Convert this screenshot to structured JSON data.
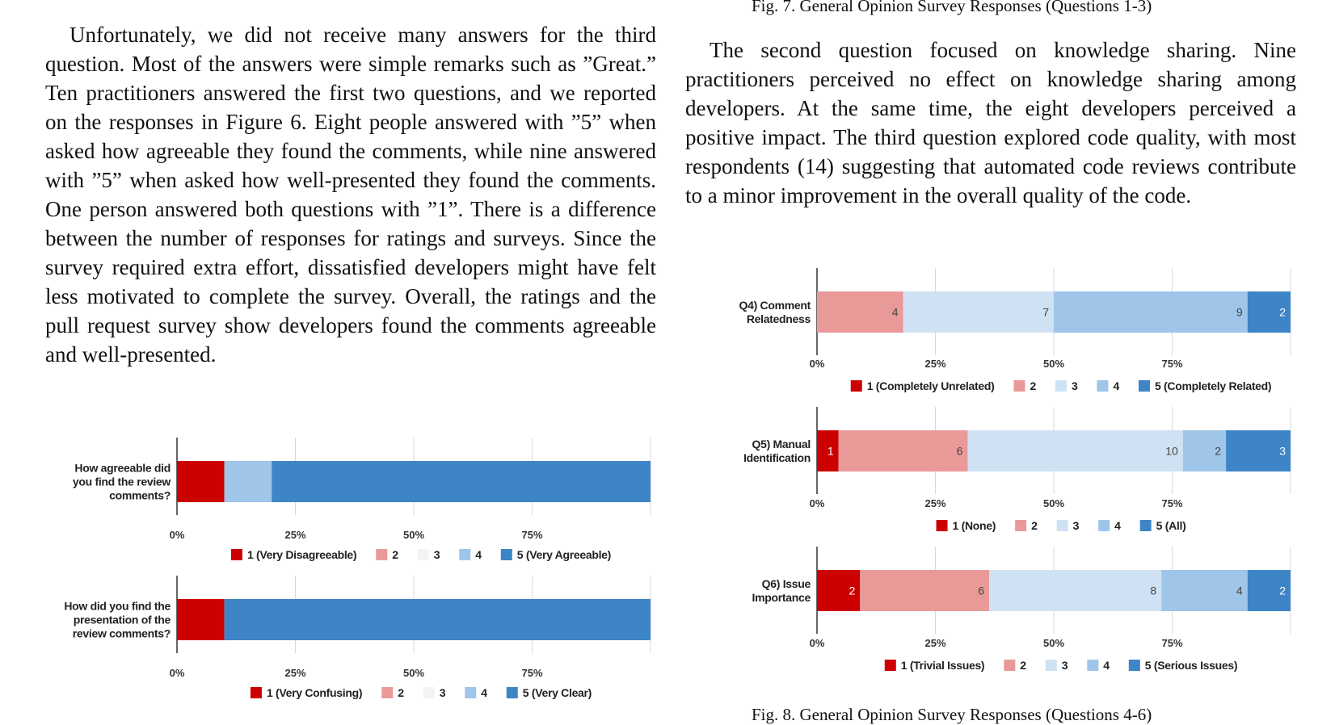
{
  "figure7_caption": "Fig. 7.  General Opinion Survey Responses (Questions 1-3)",
  "left_paragraph": "Unfortunately, we did not receive many answers for the third question. Most of the answers were simple remarks such as ”Great.” Ten practitioners answered the first two questions, and we reported on the responses in Figure 6. Eight people answered with ”5” when asked how agreeable they found the comments, while nine answered with ”5” when asked how well-presented they found the comments. One person answered both questions with ”1”. There is a difference between the number of responses for ratings and surveys. Since the survey required extra effort, dissatisfied developers might have felt less motivated to complete the survey. Overall, the ratings and the pull request survey show developers found the comments agreeable and well-presented.",
  "right_paragraph": "The second question focused on knowledge sharing. Nine practitioners perceived no effect on knowledge sharing among developers. At the same time, the eight developers perceived a positive impact. The third question explored code quality, with most respondents (14) suggesting that automated code reviews contribute to a minor improvement in the overall quality of the code.",
  "figure8_caption": "Fig. 8.  General Opinion Survey Responses (Questions 4-6)",
  "colors": [
    "#cc0000",
    "#ea9999",
    "#cfe2f3",
    "#9fc5e8",
    "#3d85c6"
  ],
  "chart_data": [
    {
      "type": "bar",
      "orientation": "horizontal",
      "stacked": true,
      "question": [
        "How agreeable did",
        "you find the review",
        "comments?"
      ],
      "values": [
        1,
        0,
        0,
        1,
        8
      ],
      "segment_labels": [
        false,
        false,
        false,
        false,
        false
      ],
      "xticks": [
        "0%",
        "25%",
        "50%",
        "75%"
      ],
      "legend": [
        "1 (Very Disagreeable)",
        "2",
        "3",
        "4",
        "5 (Very Agreeable)"
      ],
      "legend_colors": [
        "#cc0000",
        "#ea9999",
        "#f3f3f3",
        "#9fc5e8",
        "#3d85c6"
      ]
    },
    {
      "type": "bar",
      "orientation": "horizontal",
      "stacked": true,
      "question": [
        "How did you find the",
        "presentation of the",
        "review comments?"
      ],
      "values": [
        1,
        0,
        0,
        0,
        9
      ],
      "segment_labels": [
        false,
        false,
        false,
        false,
        false
      ],
      "xticks": [
        "0%",
        "25%",
        "50%",
        "75%"
      ],
      "legend": [
        "1 (Very Confusing)",
        "2",
        "3",
        "4",
        "5 (Very Clear)"
      ],
      "legend_colors": [
        "#cc0000",
        "#ea9999",
        "#f3f3f3",
        "#9fc5e8",
        "#3d85c6"
      ]
    },
    {
      "type": "bar",
      "orientation": "horizontal",
      "stacked": true,
      "question": [
        "Q4) Comment",
        "Relatedness"
      ],
      "values": [
        0,
        4,
        7,
        9,
        2
      ],
      "segment_labels": [
        false,
        true,
        true,
        true,
        true
      ],
      "xticks": [
        "0%",
        "25%",
        "50%",
        "75%"
      ],
      "legend": [
        "1 (Completely Unrelated)",
        "2",
        "3",
        "4",
        "5 (Completely Related)"
      ],
      "legend_colors": [
        "#cc0000",
        "#ea9999",
        "#cfe2f3",
        "#9fc5e8",
        "#3d85c6"
      ]
    },
    {
      "type": "bar",
      "orientation": "horizontal",
      "stacked": true,
      "question": [
        "Q5) Manual",
        "Identification"
      ],
      "values": [
        1,
        6,
        10,
        2,
        3
      ],
      "segment_labels": [
        true,
        true,
        true,
        true,
        true
      ],
      "xticks": [
        "0%",
        "25%",
        "50%",
        "75%"
      ],
      "legend": [
        "1 (None)",
        "2",
        "3",
        "4",
        "5 (All)"
      ],
      "legend_colors": [
        "#cc0000",
        "#ea9999",
        "#cfe2f3",
        "#9fc5e8",
        "#3d85c6"
      ]
    },
    {
      "type": "bar",
      "orientation": "horizontal",
      "stacked": true,
      "question": [
        "Q6) Issue",
        "Importance"
      ],
      "values": [
        2,
        6,
        8,
        4,
        2
      ],
      "segment_labels": [
        true,
        true,
        true,
        true,
        true
      ],
      "xticks": [
        "0%",
        "25%",
        "50%",
        "75%"
      ],
      "legend": [
        "1 (Trivial Issues)",
        "2",
        "3",
        "4",
        "5 (Serious Issues)"
      ],
      "legend_colors": [
        "#cc0000",
        "#ea9999",
        "#cfe2f3",
        "#9fc5e8",
        "#3d85c6"
      ]
    }
  ]
}
